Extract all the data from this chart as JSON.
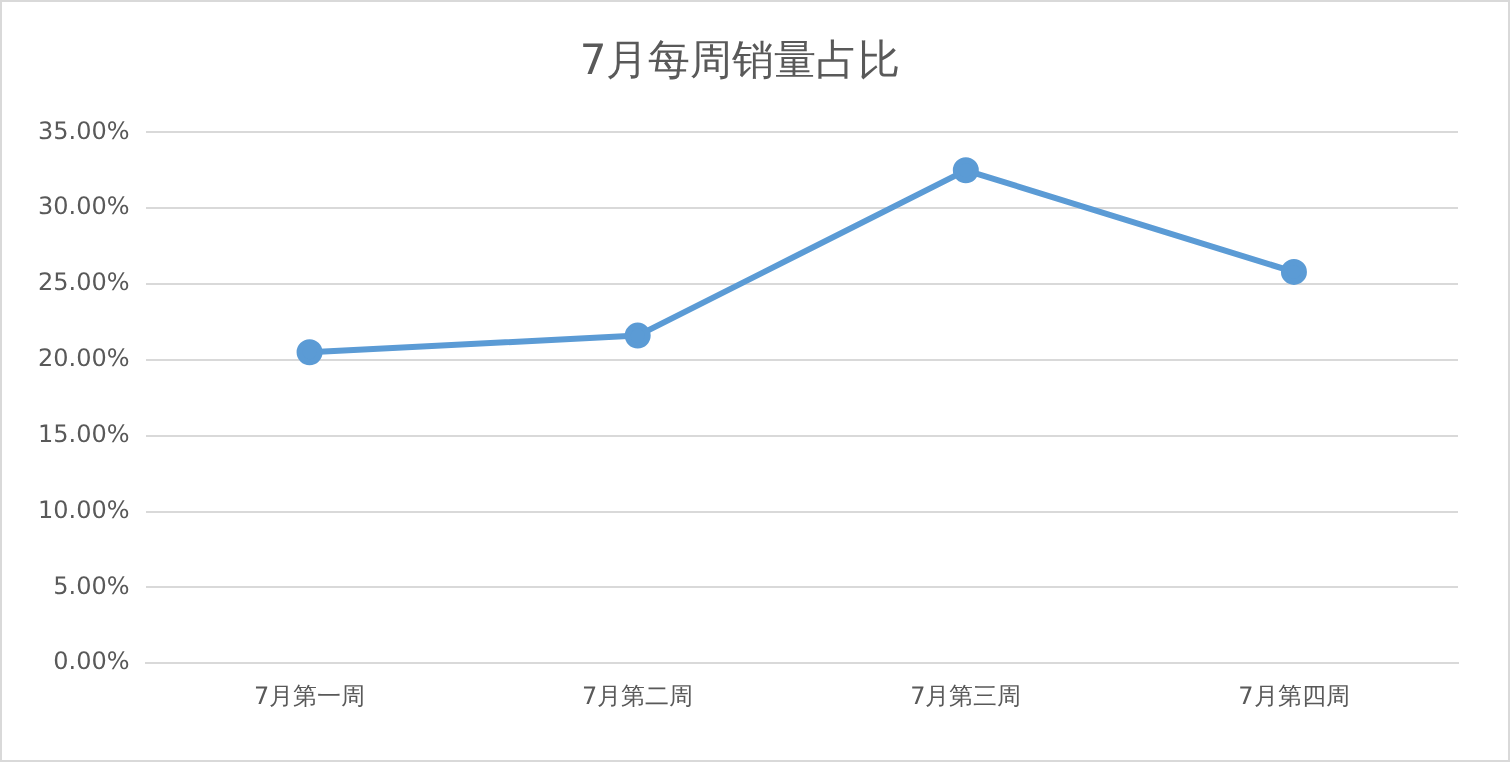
{
  "chart_data": {
    "type": "line",
    "title": "7月每周销量占比",
    "categories": [
      "7月第一周",
      "7月第二周",
      "7月第三周",
      "7月第四周"
    ],
    "series": [
      {
        "color": "#5b9bd5",
        "values": [
          20.5,
          21.6,
          32.5,
          25.8
        ]
      }
    ],
    "ylim": [
      0,
      35
    ],
    "yticks": [
      {
        "value": 0,
        "label": "0.00%"
      },
      {
        "value": 5,
        "label": "5.00%"
      },
      {
        "value": 10,
        "label": "10.00%"
      },
      {
        "value": 15,
        "label": "15.00%"
      },
      {
        "value": 20,
        "label": "20.00%"
      },
      {
        "value": 25,
        "label": "25.00%"
      },
      {
        "value": 30,
        "label": "30.00%"
      },
      {
        "value": 35,
        "label": "35.00%"
      }
    ],
    "grid": "y",
    "marker": "circle",
    "line_style": "solid",
    "legend": false
  }
}
